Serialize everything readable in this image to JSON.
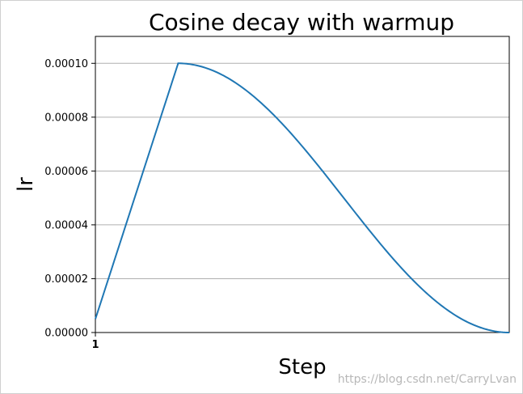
{
  "chart_data": {
    "type": "line",
    "title": "Cosine decay with warmup",
    "xlabel": "Step",
    "ylabel": "lr",
    "x_tick_labels": [
      "1"
    ],
    "ylim": [
      0,
      0.00011
    ],
    "yticks": [
      {
        "value": 0.0,
        "label": "0.00000"
      },
      {
        "value": 2e-05,
        "label": "0.00002"
      },
      {
        "value": 4e-05,
        "label": "0.00004"
      },
      {
        "value": 6e-05,
        "label": "0.00006"
      },
      {
        "value": 8e-05,
        "label": "0.00008"
      },
      {
        "value": 0.0001,
        "label": "0.00010"
      }
    ],
    "grid": "horizontal",
    "series": [
      {
        "color": "#1f77b4",
        "warmup": {
          "start_lr": 5e-06,
          "peak_lr": 0.0001,
          "peak_fraction": 0.2
        },
        "decay": "cosine",
        "end_lr": 0.0
      }
    ]
  },
  "watermark": "https://blog.csdn.net/CarryLvan"
}
